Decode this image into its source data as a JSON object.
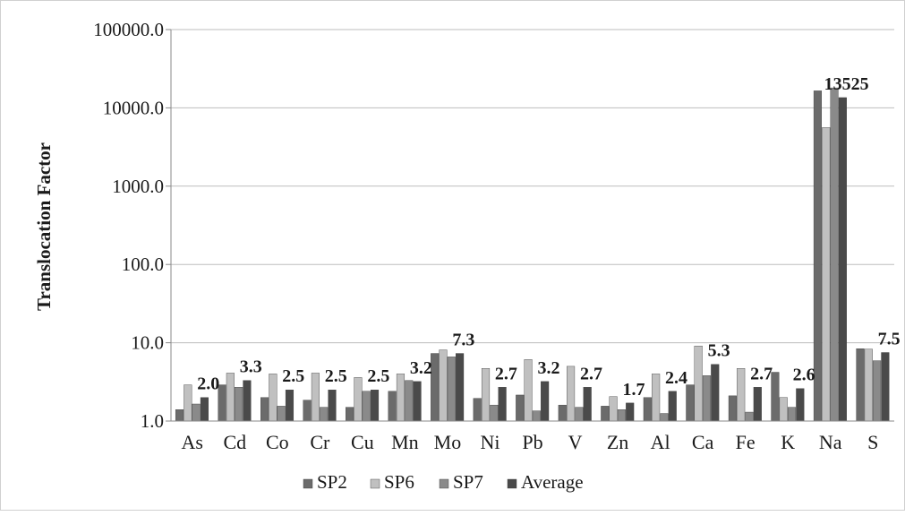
{
  "chart_data": {
    "type": "bar",
    "ylabel": "Translocation Factor",
    "xlabel": "",
    "yscale": "log",
    "ylim": [
      1.0,
      100000.0
    ],
    "yticks": [
      "1.0",
      "10.0",
      "100.0",
      "1000.0",
      "10000.0",
      "100000.0"
    ],
    "grid": true,
    "legend_position": "bottom",
    "categories": [
      "As",
      "Cd",
      "Co",
      "Cr",
      "Cu",
      "Mn",
      "Mo",
      "Ni",
      "Pb",
      "V",
      "Zn",
      "Al",
      "Ca",
      "Fe",
      "K",
      "Na",
      "S"
    ],
    "series": [
      {
        "name": "SP2",
        "color": "#6b6b6b",
        "values": [
          1.4,
          2.9,
          2.0,
          1.85,
          1.5,
          2.4,
          7.3,
          1.95,
          2.15,
          1.6,
          1.55,
          2.0,
          2.9,
          2.1,
          4.2,
          16500,
          8.4
        ]
      },
      {
        "name": "SP6",
        "color": "#c0c0c0",
        "values": [
          2.9,
          4.1,
          4.0,
          4.1,
          3.6,
          4.0,
          8.1,
          4.7,
          6.1,
          5.0,
          2.05,
          4.0,
          9.1,
          4.7,
          2.0,
          5600,
          8.3
        ]
      },
      {
        "name": "SP7",
        "color": "#8a8a8a",
        "values": [
          1.65,
          2.7,
          1.55,
          1.5,
          2.4,
          3.3,
          6.6,
          1.6,
          1.35,
          1.5,
          1.4,
          1.25,
          3.8,
          1.3,
          1.5,
          18000,
          5.9
        ]
      },
      {
        "name": "Average",
        "color": "#4a4a4a",
        "values": [
          2.0,
          3.3,
          2.5,
          2.5,
          2.5,
          3.2,
          7.3,
          2.7,
          3.2,
          2.7,
          1.7,
          2.4,
          5.3,
          2.7,
          2.6,
          13525,
          7.5
        ]
      }
    ],
    "data_labels": [
      "2.0",
      "3.3",
      "2.5",
      "2.5",
      "2.5",
      "3.2",
      "7.3",
      "2.7",
      "3.2",
      "2.7",
      "1.7",
      "2.4",
      "5.3",
      "2.7",
      "2.6",
      "13525",
      "7.5"
    ]
  }
}
